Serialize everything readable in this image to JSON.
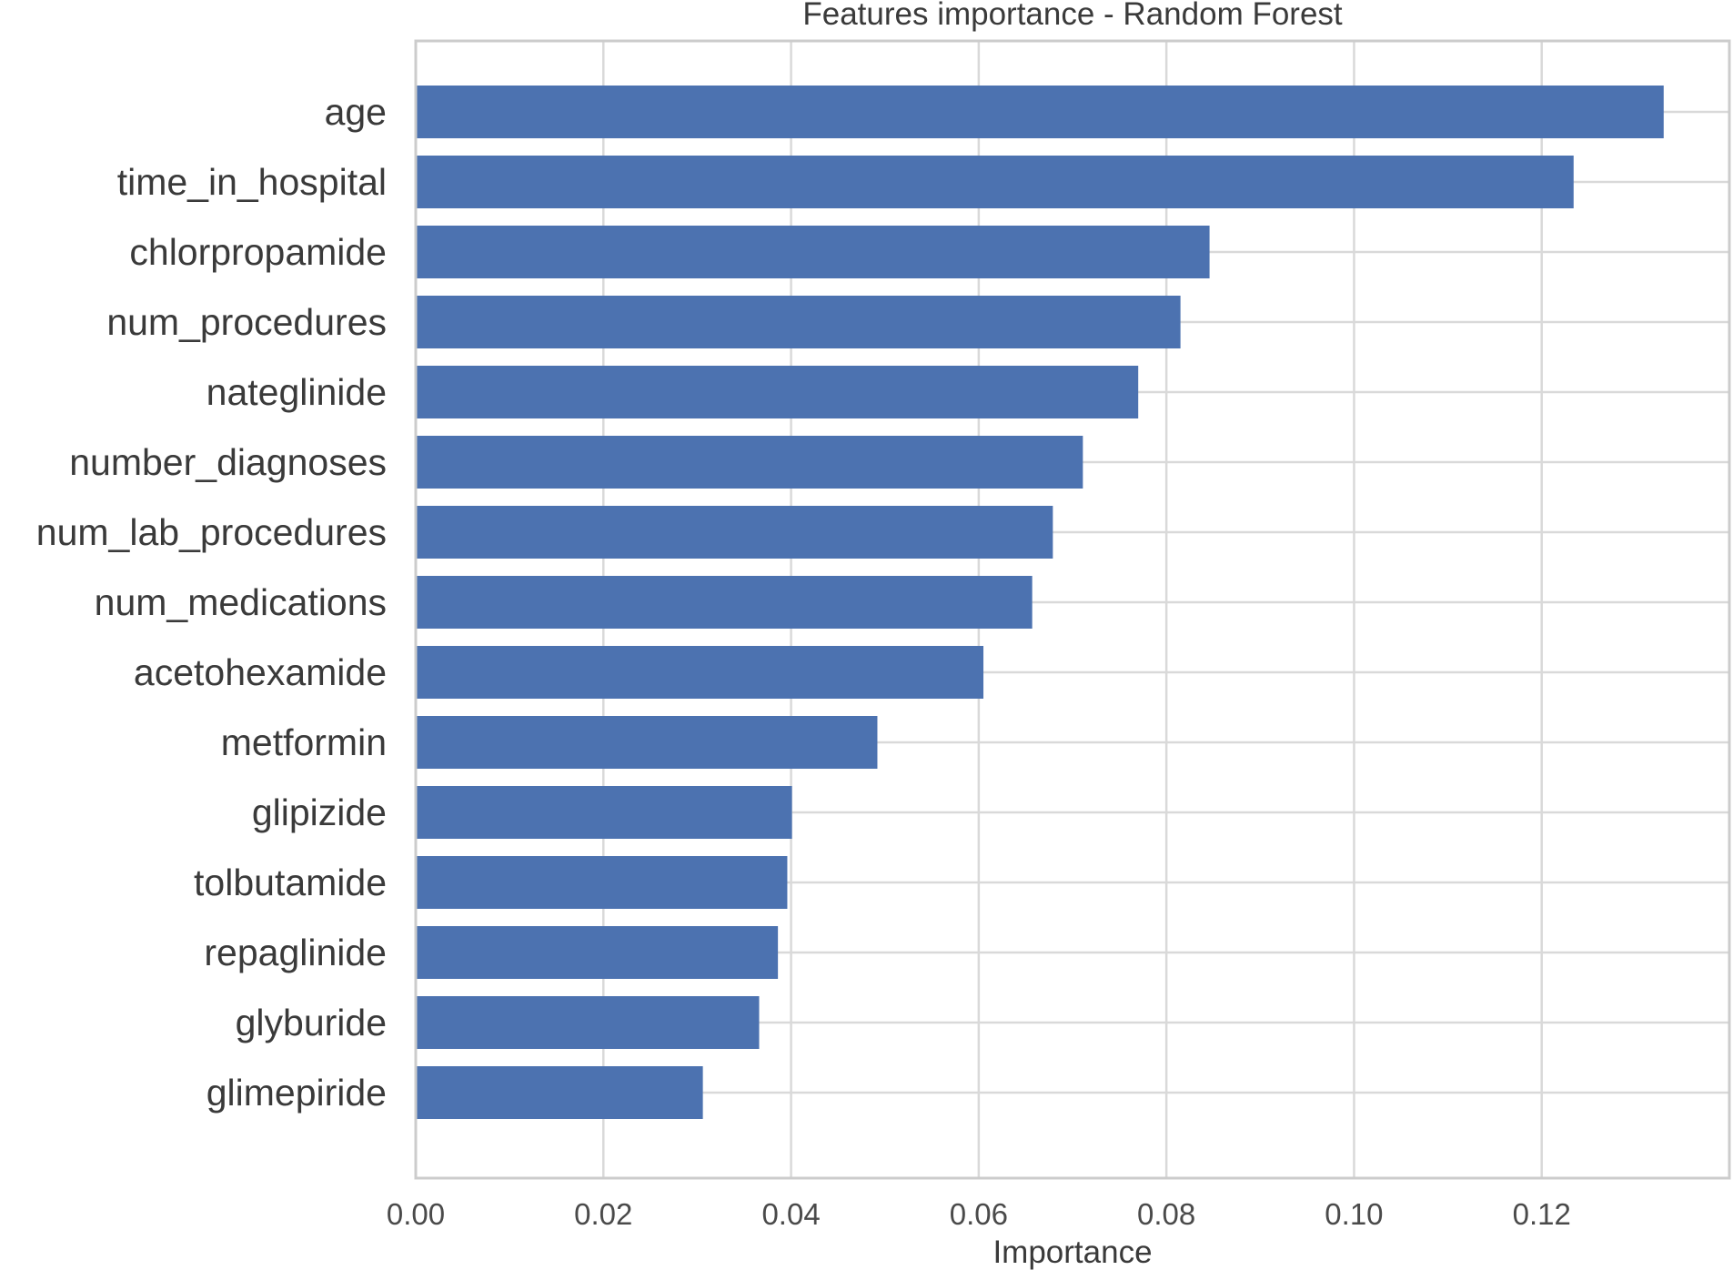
{
  "chart_data": {
    "type": "bar",
    "orientation": "horizontal",
    "title": "Features importance - Random Forest",
    "xlabel": "Importance",
    "ylabel": "",
    "xlim": [
      0,
      0.14
    ],
    "xticks": [
      0.0,
      0.02,
      0.04,
      0.06,
      0.08,
      0.1,
      0.12
    ],
    "xtick_labels": [
      "0.00",
      "0.02",
      "0.04",
      "0.06",
      "0.08",
      "0.10",
      "0.12"
    ],
    "grid": true,
    "categories": [
      "age",
      "time_in_hospital",
      "chlorpropamide",
      "num_procedures",
      "nateglinide",
      "number_diagnoses",
      "num_lab_procedures",
      "num_medications",
      "acetohexamide",
      "metformin",
      "glipizide",
      "tolbutamide",
      "repaglinide",
      "glyburide",
      "glimepiride"
    ],
    "values": [
      0.133,
      0.1234,
      0.0846,
      0.0815,
      0.077,
      0.0711,
      0.0679,
      0.0657,
      0.0605,
      0.0492,
      0.0401,
      0.0396,
      0.0386,
      0.0366,
      0.0306
    ],
    "colors": {
      "bar": "#4c72b0",
      "grid": "#d9d9d9",
      "frame": "#cccccc"
    }
  }
}
